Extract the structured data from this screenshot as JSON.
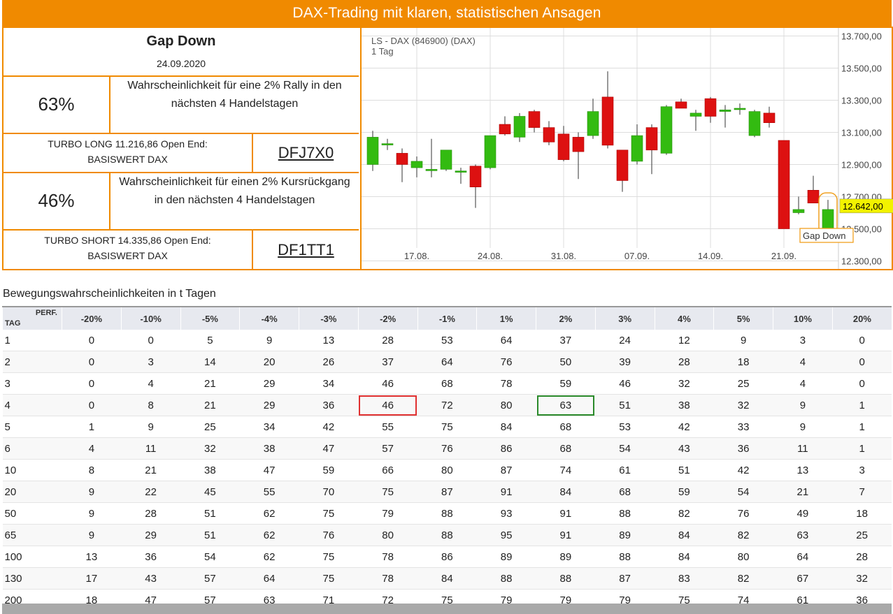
{
  "header": {
    "banner": "DAX-Trading mit klaren, statistischen Ansagen"
  },
  "signal": {
    "title": "Gap Down",
    "date": "24.09.2020",
    "long_pct": "63%",
    "long_text": "Wahrscheinlichkeit für eine 2% Rally in den nächsten 4 Handelstagen",
    "long_turbo": "TURBO LONG 11.216,86 Open End:",
    "long_turbo_sub": "BASISWERT DAX",
    "long_wkn": "DFJ7X0",
    "short_pct": "46%",
    "short_text": "Wahrscheinlichkeit für einen 2% Kursrückgang in den nächsten 4 Handelstagen",
    "short_turbo": "TURBO SHORT 14.335,86 Open End:",
    "short_turbo_sub": "BASISWERT DAX",
    "short_wkn": "DF1TT1"
  },
  "chart_data": {
    "type": "candlestick",
    "title": "LS - DAX (846900) (DAX)",
    "subtitle": "1 Tag",
    "ylim": [
      12250,
      13750
    ],
    "yticks": [
      "13.700,00",
      "13.500,00",
      "13.300,00",
      "13.100,00",
      "12.900,00",
      "12.700,00",
      "12.500,00",
      "12.300,00"
    ],
    "ytick_values": [
      13700,
      13500,
      13300,
      13100,
      12900,
      12700,
      12500,
      12300
    ],
    "xticks": [
      "17.08.",
      "24.08.",
      "31.08.",
      "07.09.",
      "14.09.",
      "21.09."
    ],
    "xtick_index": [
      3,
      8,
      13,
      18,
      23,
      28
    ],
    "last_price_label": "12.642,00",
    "annotation": "Gap Down",
    "up_color": "#33bb11",
    "down_color": "#dd1111",
    "candles": [
      {
        "o": 12900,
        "h": 13110,
        "l": 12860,
        "c": 13070
      },
      {
        "o": 13030,
        "h": 13060,
        "l": 12990,
        "c": 13030
      },
      {
        "o": 12970,
        "h": 13000,
        "l": 12790,
        "c": 12900
      },
      {
        "o": 12880,
        "h": 12950,
        "l": 12820,
        "c": 12920
      },
      {
        "o": 12870,
        "h": 13060,
        "l": 12820,
        "c": 12870
      },
      {
        "o": 12870,
        "h": 12990,
        "l": 12860,
        "c": 12990
      },
      {
        "o": 12860,
        "h": 12880,
        "l": 12780,
        "c": 12860
      },
      {
        "o": 12890,
        "h": 12900,
        "l": 12630,
        "c": 12760
      },
      {
        "o": 12880,
        "h": 13080,
        "l": 12870,
        "c": 13080
      },
      {
        "o": 13150,
        "h": 13200,
        "l": 13080,
        "c": 13090
      },
      {
        "o": 13070,
        "h": 13220,
        "l": 13040,
        "c": 13200
      },
      {
        "o": 13230,
        "h": 13240,
        "l": 13100,
        "c": 13130
      },
      {
        "o": 13130,
        "h": 13170,
        "l": 13020,
        "c": 13040
      },
      {
        "o": 13090,
        "h": 13140,
        "l": 12920,
        "c": 12930
      },
      {
        "o": 13070,
        "h": 13100,
        "l": 12810,
        "c": 12980
      },
      {
        "o": 13080,
        "h": 13310,
        "l": 13060,
        "c": 13230
      },
      {
        "o": 13320,
        "h": 13480,
        "l": 13000,
        "c": 13020
      },
      {
        "o": 12990,
        "h": 12990,
        "l": 12730,
        "c": 12800
      },
      {
        "o": 12920,
        "h": 13150,
        "l": 12900,
        "c": 13080
      },
      {
        "o": 13130,
        "h": 13150,
        "l": 12840,
        "c": 12990
      },
      {
        "o": 12970,
        "h": 13270,
        "l": 12960,
        "c": 13260
      },
      {
        "o": 13290,
        "h": 13310,
        "l": 13250,
        "c": 13250
      },
      {
        "o": 13200,
        "h": 13240,
        "l": 13110,
        "c": 13220
      },
      {
        "o": 13310,
        "h": 13320,
        "l": 13160,
        "c": 13200
      },
      {
        "o": 13230,
        "h": 13270,
        "l": 13130,
        "c": 13240
      },
      {
        "o": 13250,
        "h": 13280,
        "l": 13210,
        "c": 13250
      },
      {
        "o": 13080,
        "h": 13240,
        "l": 13070,
        "c": 13230
      },
      {
        "o": 13220,
        "h": 13260,
        "l": 13130,
        "c": 13160
      },
      {
        "o": 13050,
        "h": 13050,
        "l": 12500,
        "c": 12500
      },
      {
        "o": 12600,
        "h": 12700,
        "l": 12590,
        "c": 12620
      },
      {
        "o": 12740,
        "h": 12830,
        "l": 12660,
        "c": 12660
      },
      {
        "o": 12500,
        "h": 12680,
        "l": 12480,
        "c": 12620
      }
    ]
  },
  "table": {
    "section_title": "Bewegungswahrscheinlichkeiten in t Tagen",
    "corner_perf": "PERF.",
    "corner_tag": "TAG",
    "columns": [
      "-20%",
      "-10%",
      "-5%",
      "-4%",
      "-3%",
      "-2%",
      "-1%",
      "1%",
      "2%",
      "3%",
      "4%",
      "5%",
      "10%",
      "20%"
    ],
    "rows": [
      {
        "tag": "1",
        "values": [
          "0",
          "0",
          "5",
          "9",
          "13",
          "28",
          "53",
          "64",
          "37",
          "24",
          "12",
          "9",
          "3",
          "0"
        ]
      },
      {
        "tag": "2",
        "values": [
          "0",
          "3",
          "14",
          "20",
          "26",
          "37",
          "64",
          "76",
          "50",
          "39",
          "28",
          "18",
          "4",
          "0"
        ]
      },
      {
        "tag": "3",
        "values": [
          "0",
          "4",
          "21",
          "29",
          "34",
          "46",
          "68",
          "78",
          "59",
          "46",
          "32",
          "25",
          "4",
          "0"
        ]
      },
      {
        "tag": "4",
        "values": [
          "0",
          "8",
          "21",
          "29",
          "36",
          "46",
          "72",
          "80",
          "63",
          "51",
          "38",
          "32",
          "9",
          "1"
        ]
      },
      {
        "tag": "5",
        "values": [
          "1",
          "9",
          "25",
          "34",
          "42",
          "55",
          "75",
          "84",
          "68",
          "53",
          "42",
          "33",
          "9",
          "1"
        ]
      },
      {
        "tag": "6",
        "values": [
          "4",
          "11",
          "32",
          "38",
          "47",
          "57",
          "76",
          "86",
          "68",
          "54",
          "43",
          "36",
          "11",
          "1"
        ]
      },
      {
        "tag": "10",
        "values": [
          "8",
          "21",
          "38",
          "47",
          "59",
          "66",
          "80",
          "87",
          "74",
          "61",
          "51",
          "42",
          "13",
          "3"
        ]
      },
      {
        "tag": "20",
        "values": [
          "9",
          "22",
          "45",
          "55",
          "70",
          "75",
          "87",
          "91",
          "84",
          "68",
          "59",
          "54",
          "21",
          "7"
        ]
      },
      {
        "tag": "50",
        "values": [
          "9",
          "28",
          "51",
          "62",
          "75",
          "79",
          "88",
          "93",
          "91",
          "88",
          "82",
          "76",
          "49",
          "18"
        ]
      },
      {
        "tag": "65",
        "values": [
          "9",
          "29",
          "51",
          "62",
          "76",
          "80",
          "88",
          "95",
          "91",
          "89",
          "84",
          "82",
          "63",
          "25"
        ]
      },
      {
        "tag": "100",
        "values": [
          "13",
          "36",
          "54",
          "62",
          "75",
          "78",
          "86",
          "89",
          "89",
          "88",
          "84",
          "80",
          "64",
          "28"
        ]
      },
      {
        "tag": "130",
        "values": [
          "17",
          "43",
          "57",
          "64",
          "75",
          "78",
          "84",
          "88",
          "88",
          "87",
          "83",
          "82",
          "67",
          "32"
        ]
      },
      {
        "tag": "200",
        "values": [
          "18",
          "47",
          "57",
          "63",
          "71",
          "72",
          "75",
          "79",
          "79",
          "79",
          "75",
          "74",
          "61",
          "36"
        ]
      }
    ],
    "highlight_red": {
      "row": 3,
      "col": 5
    },
    "highlight_green": {
      "row": 3,
      "col": 8
    }
  }
}
